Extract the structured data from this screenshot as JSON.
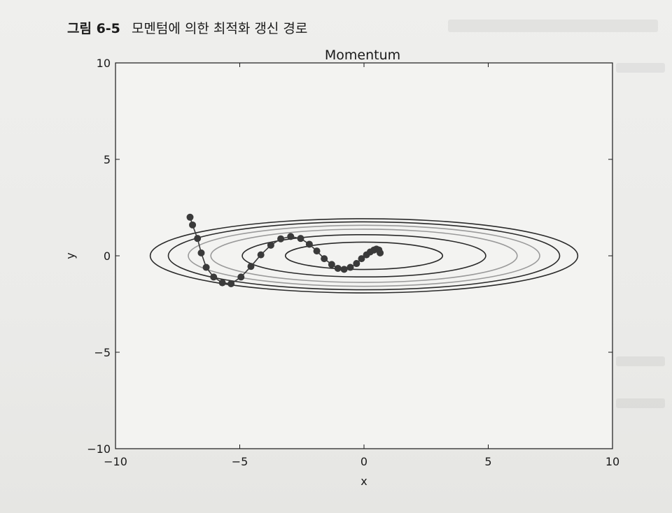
{
  "figure": {
    "number": "그림 6-5",
    "caption": "모멘텀에 의한 최적화 갱신 경로"
  },
  "chart_data": {
    "type": "line",
    "title": "Momentum",
    "xlabel": "x",
    "ylabel": "y",
    "xlim": [
      -10,
      10
    ],
    "ylim": [
      -10,
      10
    ],
    "x_ticks": [
      -10,
      -5,
      0,
      5,
      10
    ],
    "y_ticks": [
      -10,
      -5,
      0,
      5,
      10
    ],
    "x_tick_labels": [
      "−10",
      "−5",
      "0",
      "5",
      "10"
    ],
    "y_tick_labels": [
      "−10",
      "−5",
      "0",
      "5",
      "10"
    ],
    "grid": false,
    "contour_function": "x^2/20 + y^2",
    "contour_levels": [
      0.5,
      1.2,
      1.9,
      2.5,
      3.1,
      3.7
    ],
    "contour_colors": [
      "#2a2a2a",
      "#2a2a2a",
      "#9a9a9a",
      "#9a9a9a",
      "#2a2a2a",
      "#2a2a2a"
    ],
    "path_color": "#3a3a3a",
    "path": {
      "x": [
        -7.0,
        -6.9,
        -6.7,
        -6.55,
        -6.35,
        -6.05,
        -5.7,
        -5.35,
        -4.95,
        -4.55,
        -4.15,
        -3.75,
        -3.35,
        -2.95,
        -2.55,
        -2.2,
        -1.9,
        -1.6,
        -1.3,
        -1.05,
        -0.8,
        -0.55,
        -0.3,
        -0.1,
        0.1,
        0.25,
        0.4,
        0.5,
        0.6,
        0.65
      ],
      "y": [
        2.0,
        1.6,
        0.9,
        0.15,
        -0.6,
        -1.1,
        -1.4,
        -1.45,
        -1.1,
        -0.55,
        0.05,
        0.55,
        0.88,
        1.0,
        0.9,
        0.6,
        0.25,
        -0.15,
        -0.45,
        -0.65,
        -0.7,
        -0.6,
        -0.4,
        -0.15,
        0.05,
        0.2,
        0.3,
        0.35,
        0.3,
        0.15
      ]
    }
  }
}
